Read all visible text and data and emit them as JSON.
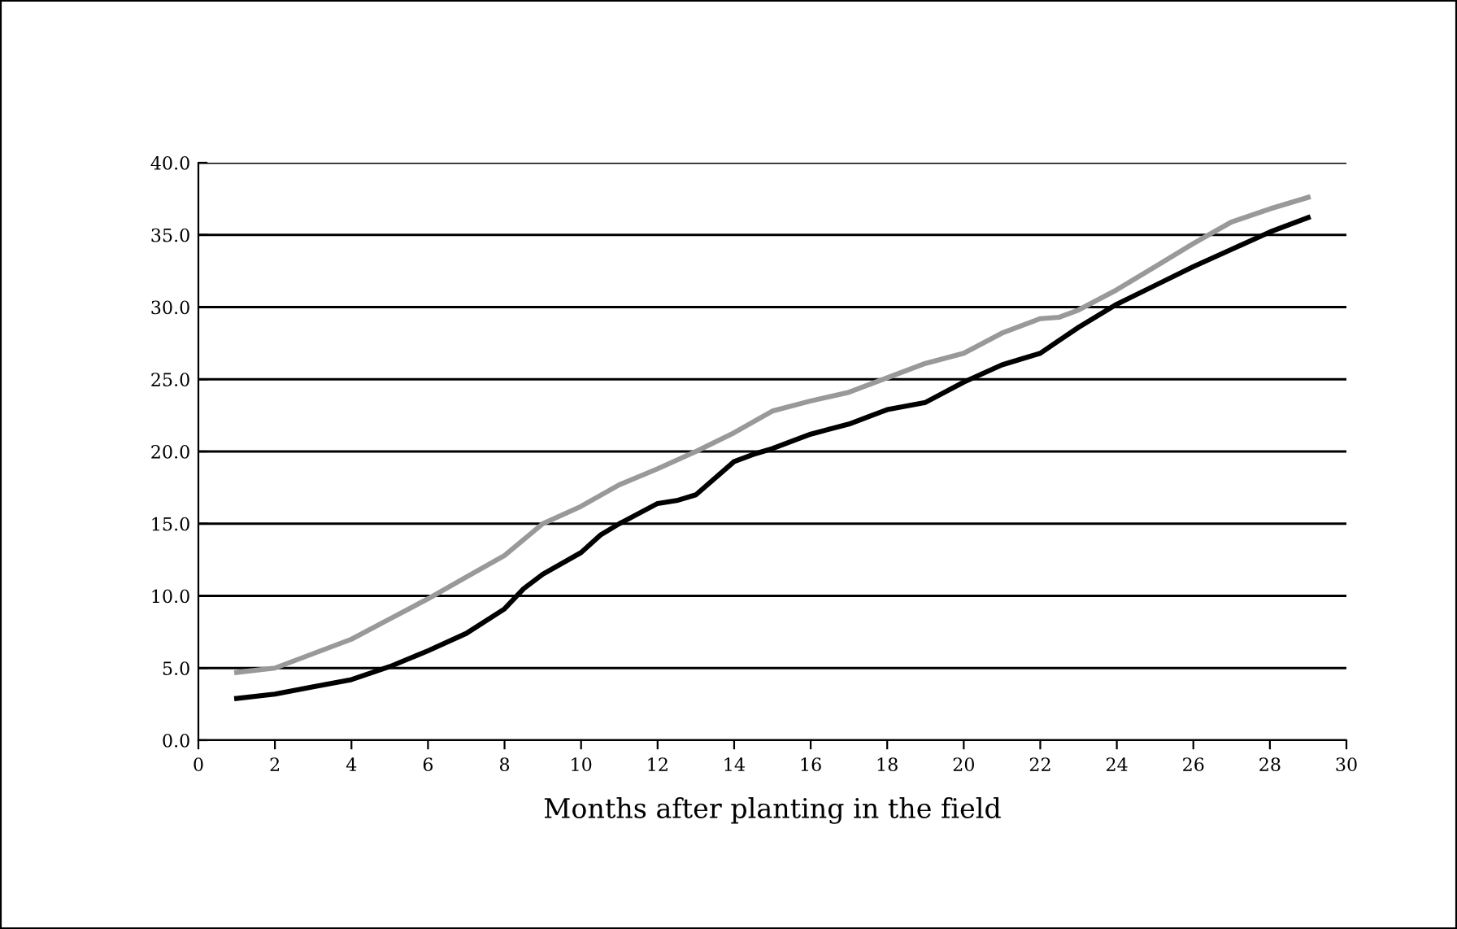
{
  "chart_data": {
    "type": "line",
    "xlabel": "Months after planting in the field",
    "xlim": [
      0,
      30
    ],
    "xticks": [
      0,
      2,
      4,
      6,
      8,
      10,
      12,
      14,
      16,
      18,
      20,
      22,
      24,
      26,
      28,
      30
    ],
    "ylim": [
      0,
      40
    ],
    "yticks": [
      {
        "value": 0,
        "label": "0.0"
      },
      {
        "value": 5,
        "label": "5.0"
      },
      {
        "value": 10,
        "label": "10.0"
      },
      {
        "value": 15,
        "label": "15.0"
      },
      {
        "value": 20,
        "label": "20.0"
      },
      {
        "value": 25,
        "label": "25.0"
      },
      {
        "value": 30,
        "label": "30.0"
      },
      {
        "value": 35,
        "label": "35.0"
      },
      {
        "value": 40,
        "label": "40.0"
      }
    ],
    "grid": "y",
    "legend": false,
    "marker": "none",
    "line_style": "solid",
    "series": [
      {
        "color": "#999999",
        "x": [
          1,
          2,
          3,
          4,
          5,
          6,
          7,
          8,
          9,
          10,
          11,
          12,
          13,
          14,
          15,
          16,
          17,
          18,
          19,
          20,
          21,
          22,
          22.5,
          23,
          24,
          25,
          26,
          27,
          28,
          29
        ],
        "values": [
          4.7,
          5.0,
          6.0,
          7.0,
          8.4,
          9.8,
          11.3,
          12.8,
          15.0,
          16.2,
          17.7,
          18.8,
          20.0,
          21.3,
          22.8,
          23.5,
          24.1,
          25.1,
          26.1,
          26.8,
          28.2,
          29.2,
          29.3,
          29.8,
          31.2,
          32.8,
          34.4,
          35.9,
          36.8,
          37.6
        ]
      },
      {
        "color": "#000000",
        "x": [
          1,
          2,
          3,
          4,
          5,
          6,
          7,
          8,
          8.5,
          9,
          10,
          10.5,
          11,
          12,
          12.5,
          13,
          14,
          14.5,
          15,
          16,
          17,
          18,
          19,
          20,
          21,
          22,
          22.5,
          23,
          24,
          25,
          26,
          27,
          28,
          29
        ],
        "values": [
          2.9,
          3.2,
          3.7,
          4.2,
          5.1,
          6.2,
          7.4,
          9.1,
          10.5,
          11.5,
          13.0,
          14.2,
          15.0,
          16.4,
          16.6,
          17.0,
          19.3,
          19.8,
          20.2,
          21.2,
          21.9,
          22.9,
          23.4,
          24.8,
          26.0,
          26.8,
          27.7,
          28.6,
          30.2,
          31.5,
          32.8,
          34.0,
          35.2,
          36.2
        ]
      }
    ]
  }
}
